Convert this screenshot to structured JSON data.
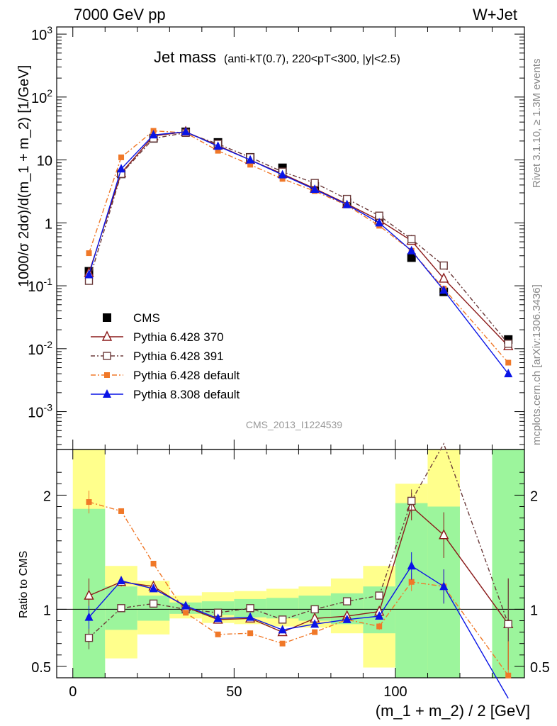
{
  "header": {
    "left": "7000 GeV pp",
    "right": "W+Jet"
  },
  "side_labels": {
    "rivet": "Rivet 3.1.10, ≥ 1.3M events",
    "mcplots": "mcplots.cern.ch [arXiv:1306.3436]"
  },
  "watermark": "CMS_2013_I1224539",
  "chart_data": {
    "type": "line",
    "title": {
      "main": "Jet mass",
      "detail": "(anti-kT(0.7), 220<pT<300, |y|<2.5)"
    },
    "main": {
      "ylabel": "1000/σ 2dσ)/d(m_1 + m_2) [1/GeV]",
      "yscale": "log",
      "ylim": [
        0.00025,
        1300
      ],
      "yticks": [
        "10^-3",
        "10^-2",
        "10^-1",
        "1",
        "10",
        "10^2",
        "10^3"
      ]
    },
    "ratio": {
      "ylabel": "Ratio to CMS",
      "ylim": [
        0.4,
        2.4
      ],
      "yticks": [
        "0.5",
        "1",
        "2"
      ],
      "bands": [
        {
          "x": [
            0,
            10
          ],
          "green": [
            0.3,
            1.88
          ],
          "yellow": [
            0.3,
            2.4
          ]
        },
        {
          "x": [
            10,
            20
          ],
          "green": [
            0.82,
            1.2
          ],
          "yellow": [
            0.57,
            1.38
          ]
        },
        {
          "x": [
            20,
            30
          ],
          "green": [
            0.9,
            1.12
          ],
          "yellow": [
            0.78,
            1.25
          ]
        },
        {
          "x": [
            30,
            40
          ],
          "green": [
            0.96,
            1.06
          ],
          "yellow": [
            0.92,
            1.12
          ]
        },
        {
          "x": [
            40,
            50
          ],
          "green": [
            0.95,
            1.07
          ],
          "yellow": [
            0.88,
            1.15
          ]
        },
        {
          "x": [
            50,
            60
          ],
          "green": [
            0.93,
            1.09
          ],
          "yellow": [
            0.87,
            1.16
          ]
        },
        {
          "x": [
            60,
            70
          ],
          "green": [
            0.92,
            1.1
          ],
          "yellow": [
            0.85,
            1.18
          ]
        },
        {
          "x": [
            70,
            80
          ],
          "green": [
            0.9,
            1.12
          ],
          "yellow": [
            0.84,
            1.2
          ]
        },
        {
          "x": [
            80,
            90
          ],
          "green": [
            0.87,
            1.14
          ],
          "yellow": [
            0.79,
            1.27
          ]
        },
        {
          "x": [
            90,
            100
          ],
          "green": [
            0.79,
            1.2
          ],
          "yellow": [
            0.49,
            1.38
          ]
        },
        {
          "x": [
            100,
            110
          ],
          "green": [
            0.4,
            1.93
          ],
          "yellow": [
            0.4,
            2.1
          ]
        },
        {
          "x": [
            110,
            120
          ],
          "green": [
            0.4,
            1.9
          ],
          "yellow": [
            0.4,
            2.4
          ]
        },
        {
          "x": [
            130,
            140
          ],
          "green": [
            0.4,
            2.4
          ],
          "yellow": [
            0.4,
            2.4
          ]
        }
      ]
    },
    "xlabel": "(m_1 + m_2) / 2 [GeV]",
    "xlim": [
      -5,
      140
    ],
    "xticks": [
      0,
      50,
      100
    ],
    "x": [
      5,
      15,
      25,
      35,
      45,
      55,
      65,
      75,
      85,
      95,
      105,
      115,
      135
    ],
    "series": [
      {
        "name": "CMS",
        "color": "#000000",
        "marker": "square",
        "dash": "",
        "values": [
          0.17,
          6.0,
          22,
          28,
          19,
          11,
          7.5,
          3.8,
          2.1,
          1.1,
          0.28,
          0.08,
          0.014
        ],
        "ratio": [
          1,
          1,
          1,
          1,
          1,
          1,
          1,
          1,
          1,
          1,
          1,
          1,
          1
        ]
      },
      {
        "name": "Pythia 6.428 370",
        "color": "#8b1a1a",
        "marker": "triangle-open",
        "dash": "",
        "values": [
          0.16,
          6.2,
          24,
          28,
          17,
          10,
          6.0,
          3.5,
          2.0,
          1.1,
          0.52,
          0.13,
          0.011
        ],
        "ratio": [
          1.12,
          1.24,
          1.2,
          1.02,
          0.91,
          0.92,
          0.8,
          0.92,
          0.94,
          0.98,
          1.9,
          1.65,
          0.87
        ],
        "ratio_err": [
          0.15,
          0.04,
          0.03,
          0.02,
          0.02,
          0.02,
          0.02,
          0.02,
          0.02,
          0.03,
          0.12,
          0.2,
          0.4
        ]
      },
      {
        "name": "Pythia 6.428 391",
        "color": "#6b3a3a",
        "marker": "square-open",
        "dash": "6,3,2,3",
        "values": [
          0.12,
          6.0,
          22,
          27,
          18,
          11,
          6.5,
          4.3,
          2.4,
          1.3,
          0.55,
          0.21,
          0.012
        ],
        "ratio": [
          0.75,
          1.01,
          1.05,
          1.0,
          0.97,
          1.01,
          0.91,
          1.0,
          1.07,
          1.12,
          1.95,
          2.45,
          0.87
        ],
        "ratio_err": [
          0.1,
          0.02,
          0.02,
          0.02,
          0.02,
          0.02,
          0.02,
          0.02,
          0.02,
          0.03,
          0.1,
          0.2,
          0.4
        ]
      },
      {
        "name": "Pythia 6.428 default",
        "color": "#f07828",
        "marker": "square-small",
        "dash": "7,3,2,3",
        "values": [
          0.33,
          11,
          29,
          27,
          14,
          8.4,
          5.0,
          3.2,
          1.9,
          0.9,
          0.36,
          0.09,
          0.006
        ],
        "ratio": [
          1.94,
          1.86,
          1.4,
          0.97,
          0.78,
          0.79,
          0.7,
          0.8,
          0.91,
          0.85,
          1.24,
          1.2,
          0.42
        ],
        "ratio_err": [
          0.1,
          0.02,
          0.02,
          0.02,
          0.02,
          0.02,
          0.02,
          0.02,
          0.02,
          0.03,
          0.08,
          0.15,
          0.3
        ]
      },
      {
        "name": "Pythia 8.308 default",
        "color": "#0a14e6",
        "marker": "triangle",
        "dash": "",
        "values": [
          0.15,
          7.2,
          25,
          28,
          16.5,
          10,
          5.8,
          3.4,
          1.95,
          1.0,
          0.36,
          0.085,
          0.004
        ],
        "ratio": [
          0.93,
          1.25,
          1.18,
          1.03,
          0.92,
          0.93,
          0.82,
          0.87,
          0.91,
          0.94,
          1.38,
          1.2,
          0.22
        ],
        "ratio_err": [
          0.1,
          0.03,
          0.02,
          0.02,
          0.02,
          0.02,
          0.02,
          0.02,
          0.02,
          0.03,
          0.12,
          0.15,
          0.2
        ]
      }
    ],
    "legend_position": "middle-left"
  }
}
